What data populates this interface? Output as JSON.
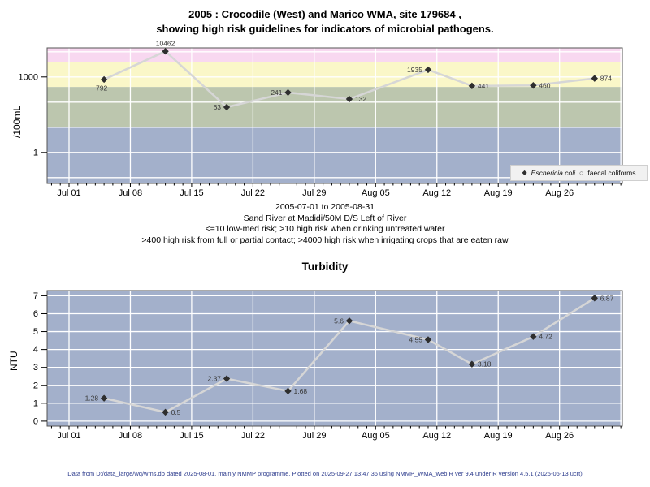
{
  "title": {
    "line1": "2005 : Crocodile (West) and Marico WMA, site 179684 ,",
    "line2": "showing high risk guidelines for indicators of microbial pathogens."
  },
  "info": {
    "period": "2005-07-01 to 2005-08-31",
    "site": "Sand River at Madidi/50M D/S Left of River",
    "guideline1": "<=10 low-med risk; >10 high risk when drinking untreated water",
    "guideline2": ">400 high risk from full or partial contact; >4000 high risk when irrigating crops that are eaten raw"
  },
  "legend": {
    "series1": "Eschericia coli",
    "series2": "faecal coliforms",
    "marker1": "filled-diamond",
    "marker2": "open-circle"
  },
  "footer": "Data from D:/data_large/wq/wms.db dated 2025-08-01, mainly NMMP programme. Plotted on 2025-09-27 13:47:36 using NMMP_WMA_web.R ver 9.4 under R version 4.5.1 (2025-06-13 ucrt)",
  "colors": {
    "band_irrigation": "#F8D8F0",
    "band_contact": "#FAF7C8",
    "band_mid": "#BCC6AE",
    "band_low": "#A3B0CB",
    "grid": "#FFFFFF",
    "line": "#D6D6D6",
    "marker": "#2E2E2E",
    "plot_border": "#555555",
    "footer_text": "#2B3A8C"
  },
  "chart_data": [
    {
      "type": "line",
      "title": "2005 : Crocodile (West) and Marico WMA, site 179684 , showing high risk guidelines for indicators of microbial pathogens.",
      "ylabel": "/100mL",
      "yscale": "log10",
      "ylim": [
        0.06,
        14000
      ],
      "x_range": "2005-07-01 to 2005-08-31",
      "x": [
        "2005-07-05",
        "2005-07-12",
        "2005-07-19",
        "2005-07-26",
        "2005-08-02",
        "2005-08-11",
        "2005-08-16",
        "2005-08-23",
        "2005-08-30"
      ],
      "series": [
        {
          "name": "Eschericia coli",
          "marker": "filled-diamond",
          "values": [
            792,
            10462,
            63,
            241,
            132,
            1935,
            441,
            460,
            874
          ],
          "label_sides": [
            "below",
            "above",
            "left",
            "left",
            "right",
            "left",
            "right",
            "right",
            "right"
          ]
        },
        {
          "name": "faecal coliforms",
          "marker": "open-circle",
          "values": []
        }
      ],
      "ytick_values": [
        1000,
        1
      ],
      "ytick_labels": [
        "1000",
        "1"
      ],
      "grid_y_values": [
        10000,
        1000,
        100,
        10,
        1,
        0.1
      ],
      "xtick_dates": [
        "2005-07-01",
        "2005-07-08",
        "2005-07-15",
        "2005-07-22",
        "2005-07-29",
        "2005-08-05",
        "2005-08-12",
        "2005-08-19",
        "2005-08-26"
      ],
      "xtick_labels": [
        "Jul 01",
        "Jul 08",
        "Jul 15",
        "Jul 22",
        "Jul 29",
        "Aug 05",
        "Aug 12",
        "Aug 19",
        "Aug 26"
      ],
      "bands": [
        {
          "label": ">4000 high risk when irrigating crops that are eaten raw",
          "min": 4000,
          "max": 14000,
          "color": "#F8D8F0"
        },
        {
          "label": ">400 high risk from full or partial contact",
          "min": 400,
          "max": 4000,
          "color": "#FAF7C8"
        },
        {
          "label": ">10 high risk when drinking untreated water",
          "min": 10,
          "max": 400,
          "color": "#BCC6AE"
        },
        {
          "label": "<=10 low-med risk",
          "min": 0.06,
          "max": 10,
          "color": "#A3B0CB"
        }
      ],
      "legend_position": "bottom-right",
      "grid": true
    },
    {
      "type": "line",
      "title": "Turbidity",
      "ylabel": "NTU",
      "yscale": "linear",
      "ylim": [
        0,
        7
      ],
      "x_range": "2005-07-01 to 2005-08-31",
      "x": [
        "2005-07-05",
        "2005-07-12",
        "2005-07-19",
        "2005-07-26",
        "2005-08-02",
        "2005-08-11",
        "2005-08-16",
        "2005-08-23",
        "2005-08-30"
      ],
      "series": [
        {
          "name": "Turbidity",
          "marker": "filled-diamond",
          "values": [
            1.28,
            0.5,
            2.37,
            1.68,
            5.6,
            4.55,
            3.18,
            4.72,
            6.87
          ],
          "label_sides": [
            "left",
            "right",
            "left",
            "right",
            "left",
            "left",
            "right",
            "right",
            "right"
          ]
        }
      ],
      "ytick_values": [
        0,
        1,
        2,
        3,
        4,
        5,
        6,
        7
      ],
      "ytick_labels": [
        "0",
        "1",
        "2",
        "3",
        "4",
        "5",
        "6",
        "7"
      ],
      "grid_y_values": [
        0,
        1,
        2,
        3,
        4,
        5,
        6,
        7
      ],
      "xtick_dates": [
        "2005-07-01",
        "2005-07-08",
        "2005-07-15",
        "2005-07-22",
        "2005-07-29",
        "2005-08-05",
        "2005-08-12",
        "2005-08-19",
        "2005-08-26"
      ],
      "xtick_labels": [
        "Jul 01",
        "Jul 08",
        "Jul 15",
        "Jul 22",
        "Jul 29",
        "Aug 05",
        "Aug 12",
        "Aug 19",
        "Aug 26"
      ],
      "bg_color": "#A3B0CB",
      "grid": true
    }
  ]
}
